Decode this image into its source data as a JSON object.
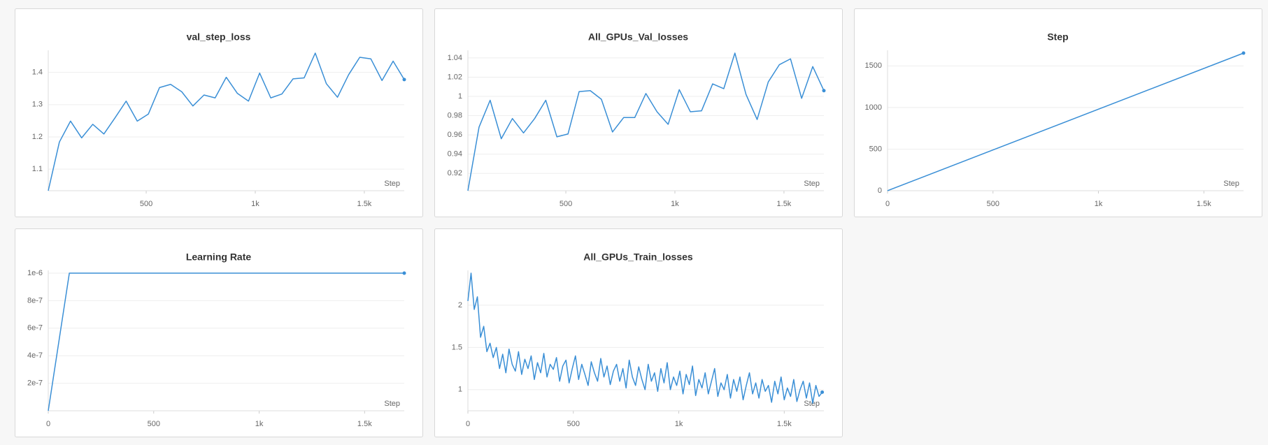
{
  "chart_data": [
    {
      "type": "line",
      "title": "val_step_loss",
      "x_label": "Step",
      "color": "#3a8fd6",
      "grid": true,
      "x": [
        51,
        102,
        153,
        204,
        255,
        306,
        357,
        408,
        459,
        510,
        561,
        612,
        663,
        714,
        765,
        816,
        867,
        918,
        969,
        1020,
        1071,
        1122,
        1173,
        1224,
        1275,
        1326,
        1377,
        1428,
        1479,
        1530,
        1581,
        1632,
        1683
      ],
      "values": [
        1.033,
        1.184,
        1.249,
        1.197,
        1.239,
        1.209,
        1.259,
        1.311,
        1.249,
        1.271,
        1.353,
        1.363,
        1.34,
        1.296,
        1.33,
        1.321,
        1.385,
        1.335,
        1.311,
        1.398,
        1.321,
        1.333,
        1.38,
        1.383,
        1.46,
        1.365,
        1.323,
        1.393,
        1.447,
        1.442,
        1.375,
        1.435,
        1.378
      ],
      "xlim": [
        51,
        1683
      ],
      "ylim": [
        1.033,
        1.46
      ],
      "xticks": [
        500,
        {
          "value": 1000,
          "label": "1k"
        },
        {
          "value": 1500,
          "label": "1.5k"
        }
      ],
      "yticks": [
        1.1,
        1.2,
        1.3,
        1.4
      ]
    },
    {
      "type": "line",
      "title": "All_GPUs_Val_losses",
      "x_label": "Step",
      "color": "#3a8fd6",
      "grid": true,
      "x": [
        51,
        102,
        153,
        204,
        255,
        306,
        357,
        408,
        459,
        510,
        561,
        612,
        663,
        714,
        765,
        816,
        867,
        918,
        969,
        1020,
        1071,
        1122,
        1173,
        1224,
        1275,
        1326,
        1377,
        1428,
        1479,
        1530,
        1581,
        1632,
        1683
      ],
      "values": [
        0.902,
        0.968,
        0.996,
        0.956,
        0.977,
        0.962,
        0.977,
        0.996,
        0.958,
        0.961,
        1.005,
        1.006,
        0.997,
        0.963,
        0.978,
        0.978,
        1.003,
        0.984,
        0.971,
        1.007,
        0.984,
        0.985,
        1.013,
        1.008,
        1.045,
        1.002,
        0.976,
        1.015,
        1.033,
        1.039,
        0.998,
        1.031,
        1.006
      ],
      "xlim": [
        51,
        1683
      ],
      "ylim": [
        0.902,
        1.045
      ],
      "xticks": [
        500,
        {
          "value": 1000,
          "label": "1k"
        },
        {
          "value": 1500,
          "label": "1.5k"
        }
      ],
      "yticks": [
        0.92,
        0.94,
        0.96,
        0.98,
        1,
        1.02,
        1.04
      ]
    },
    {
      "type": "line",
      "title": "Step",
      "x_label": "Step",
      "color": "#3a8fd6",
      "grid": true,
      "x": [
        0,
        1688
      ],
      "values": [
        0,
        1654
      ],
      "xlim": [
        0,
        1688
      ],
      "ylim": [
        0,
        1654
      ],
      "xticks": [
        0,
        500,
        {
          "value": 1000,
          "label": "1k"
        },
        {
          "value": 1500,
          "label": "1.5k"
        }
      ],
      "yticks": [
        0,
        500,
        1000,
        1500
      ]
    },
    {
      "type": "line",
      "title": "Learning Rate",
      "x_label": "Step",
      "color": "#3a8fd6",
      "grid": true,
      "x": [
        0,
        100,
        1688
      ],
      "values": [
        0,
        1e-06,
        1e-06
      ],
      "xlim": [
        0,
        1688
      ],
      "ylim": [
        0,
        1e-06
      ],
      "xticks": [
        0,
        500,
        {
          "value": 1000,
          "label": "1k"
        },
        {
          "value": 1500,
          "label": "1.5k"
        }
      ],
      "yticks": [
        {
          "value": 2e-07,
          "label": "2e-7"
        },
        {
          "value": 4e-07,
          "label": "4e-7"
        },
        {
          "value": 6e-07,
          "label": "6e-7"
        },
        {
          "value": 8e-07,
          "label": "8e-7"
        },
        {
          "value": 1e-06,
          "label": "1e-6"
        }
      ]
    },
    {
      "type": "line",
      "title": "All_GPUs_Train_losses",
      "x_label": "Step",
      "color": "#3a8fd6",
      "grid": true,
      "x": [
        0,
        15,
        30,
        45,
        60,
        75,
        90,
        105,
        120,
        135,
        150,
        165,
        180,
        195,
        210,
        225,
        240,
        255,
        270,
        285,
        300,
        315,
        330,
        345,
        360,
        375,
        390,
        405,
        420,
        435,
        450,
        465,
        480,
        495,
        510,
        525,
        540,
        555,
        570,
        585,
        600,
        615,
        630,
        645,
        660,
        675,
        690,
        705,
        720,
        735,
        750,
        765,
        780,
        795,
        810,
        825,
        840,
        855,
        870,
        885,
        900,
        915,
        930,
        945,
        960,
        975,
        990,
        1005,
        1020,
        1035,
        1050,
        1065,
        1080,
        1095,
        1110,
        1125,
        1140,
        1155,
        1170,
        1185,
        1200,
        1215,
        1230,
        1245,
        1260,
        1275,
        1290,
        1305,
        1320,
        1335,
        1350,
        1365,
        1380,
        1395,
        1410,
        1425,
        1440,
        1455,
        1470,
        1485,
        1500,
        1515,
        1530,
        1545,
        1560,
        1575,
        1590,
        1605,
        1620,
        1635,
        1650,
        1665,
        1680
      ],
      "values": [
        2.05,
        2.38,
        1.95,
        2.1,
        1.62,
        1.75,
        1.45,
        1.55,
        1.38,
        1.5,
        1.25,
        1.42,
        1.2,
        1.48,
        1.3,
        1.22,
        1.45,
        1.18,
        1.36,
        1.25,
        1.4,
        1.12,
        1.32,
        1.2,
        1.43,
        1.15,
        1.3,
        1.24,
        1.38,
        1.1,
        1.28,
        1.35,
        1.08,
        1.25,
        1.4,
        1.12,
        1.3,
        1.18,
        1.05,
        1.33,
        1.2,
        1.1,
        1.37,
        1.15,
        1.28,
        1.06,
        1.22,
        1.3,
        1.1,
        1.25,
        1.02,
        1.35,
        1.15,
        1.05,
        1.27,
        1.12,
        1.0,
        1.3,
        1.1,
        1.2,
        0.98,
        1.25,
        1.08,
        1.32,
        1.0,
        1.15,
        1.05,
        1.22,
        0.95,
        1.18,
        1.06,
        1.28,
        0.93,
        1.12,
        1.02,
        1.2,
        0.95,
        1.1,
        1.25,
        0.92,
        1.08,
        1.0,
        1.18,
        0.9,
        1.12,
        0.98,
        1.15,
        0.88,
        1.05,
        1.2,
        0.95,
        1.08,
        0.9,
        1.12,
        0.98,
        1.05,
        0.85,
        1.1,
        0.95,
        1.15,
        0.88,
        1.02,
        0.92,
        1.12,
        0.86,
        1.0,
        1.1,
        0.9,
        1.08,
        0.84,
        1.05,
        0.92,
        0.97
      ],
      "xlim": [
        0,
        1688
      ],
      "ylim": [
        0.75,
        2.38
      ],
      "xticks": [
        0,
        500,
        {
          "value": 1000,
          "label": "1k"
        },
        {
          "value": 1500,
          "label": "1.5k"
        }
      ],
      "yticks": [
        1,
        1.5,
        2
      ]
    }
  ]
}
